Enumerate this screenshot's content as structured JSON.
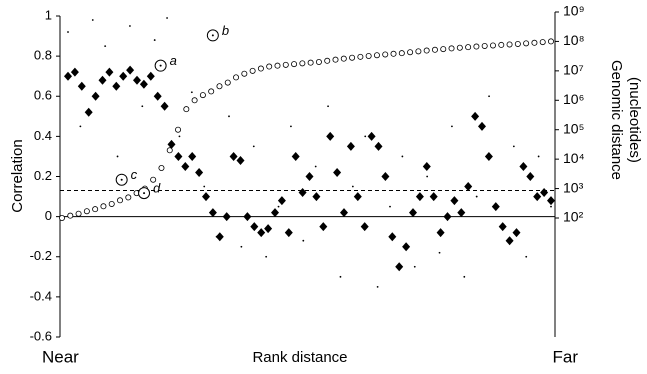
{
  "chart_data": {
    "type": "scatter",
    "ylabel": "Correlation",
    "y2label": [
      "Genomic distance",
      "(nucleotides)"
    ],
    "xlabel": "Rank distance",
    "x_start_label": "Near",
    "x_end_label": "Far",
    "ylim": [
      -0.6,
      1
    ],
    "yticks": [
      -0.6,
      -0.4,
      -0.2,
      0,
      0.2,
      0.4,
      0.6,
      0.8,
      1
    ],
    "y2lim": [
      100,
      1000000000
    ],
    "y2scale": "log",
    "y2ticks": [
      {
        "value": 100,
        "label": "10²"
      },
      {
        "value": 1000,
        "label": "10³"
      },
      {
        "value": 10000,
        "label": "10⁴"
      },
      {
        "value": 100000,
        "label": "10⁵"
      },
      {
        "value": 1000000,
        "label": "10⁶"
      },
      {
        "value": 10000000,
        "label": "10⁷"
      },
      {
        "value": 100000000,
        "label": "10⁸"
      },
      {
        "value": 1000000000,
        "label": "10⁹"
      }
    ],
    "threshold": 0.13,
    "series": [
      {
        "name": "mean correlation",
        "marker": "diamond",
        "color": "#000000",
        "values": [
          0.7,
          0.72,
          0.65,
          0.52,
          0.6,
          0.68,
          0.72,
          0.65,
          0.7,
          0.73,
          0.68,
          0.66,
          0.7,
          0.6,
          0.55,
          0.36,
          0.3,
          0.25,
          0.3,
          0.22,
          0.1,
          0.02,
          -0.1,
          0.0,
          0.3,
          0.28,
          0.0,
          -0.05,
          -0.08,
          -0.06,
          0.02,
          0.08,
          -0.08,
          0.3,
          0.12,
          0.2,
          0.1,
          -0.05,
          0.4,
          0.22,
          0.02,
          0.35,
          0.1,
          -0.05,
          0.4,
          0.35,
          0.2,
          -0.1,
          -0.25,
          -0.15,
          0.02,
          0.1,
          0.25,
          0.1,
          -0.08,
          0.0,
          0.08,
          0.02,
          0.15,
          0.5,
          0.45,
          0.3,
          0.05,
          -0.05,
          -0.12,
          -0.08,
          0.25,
          0.2,
          0.1,
          0.12,
          0.08
        ]
      },
      {
        "name": "individual correlation",
        "marker": "dot",
        "color": "#000000",
        "values": [
          0.92,
          0.45,
          0.98,
          0.85,
          0.3,
          0.95,
          0.55,
          0.88,
          0.99,
          0.4,
          0.62,
          0.15,
          -0.1,
          0.5,
          -0.15,
          0.35,
          -0.2,
          0.05,
          0.45,
          -0.12,
          0.25,
          0.55,
          -0.3,
          0.15,
          0.4,
          -0.35,
          0.05,
          0.3,
          -0.25,
          0.2,
          -0.18,
          0.45,
          -0.3,
          0.1,
          0.6,
          -0.05,
          0.35,
          -0.2,
          0.3,
          0.05
        ]
      },
      {
        "name": "genomic distance",
        "marker": "circle",
        "color": "#000000",
        "axis": "y2",
        "values": [
          100,
          120,
          140,
          170,
          200,
          250,
          300,
          400,
          500,
          700,
          1000,
          2000,
          5000,
          20000,
          100000,
          500000,
          1000000,
          1500000,
          2000000,
          3000000,
          4000000,
          6000000,
          8000000,
          10000000,
          12000000,
          14000000,
          15000000,
          16000000,
          17000000,
          18000000,
          19000000,
          20000000,
          22000000,
          24000000,
          26000000,
          28000000,
          30000000,
          32000000,
          34000000,
          36000000,
          38000000,
          40000000,
          43000000,
          46000000,
          49000000,
          52000000,
          55000000,
          58000000,
          61000000,
          64000000,
          67000000,
          70000000,
          73000000,
          76000000,
          79000000,
          82000000,
          86000000,
          90000000,
          95000000,
          100000000
        ]
      }
    ],
    "annotations": [
      {
        "label": "a",
        "x": 11.9,
        "value": 15000000
      },
      {
        "label": "b",
        "x": 18.2,
        "value": 160000000
      },
      {
        "label": "c",
        "x": 7.2,
        "value": 2000
      },
      {
        "label": "d",
        "x": 9.9,
        "value": 700
      }
    ]
  }
}
